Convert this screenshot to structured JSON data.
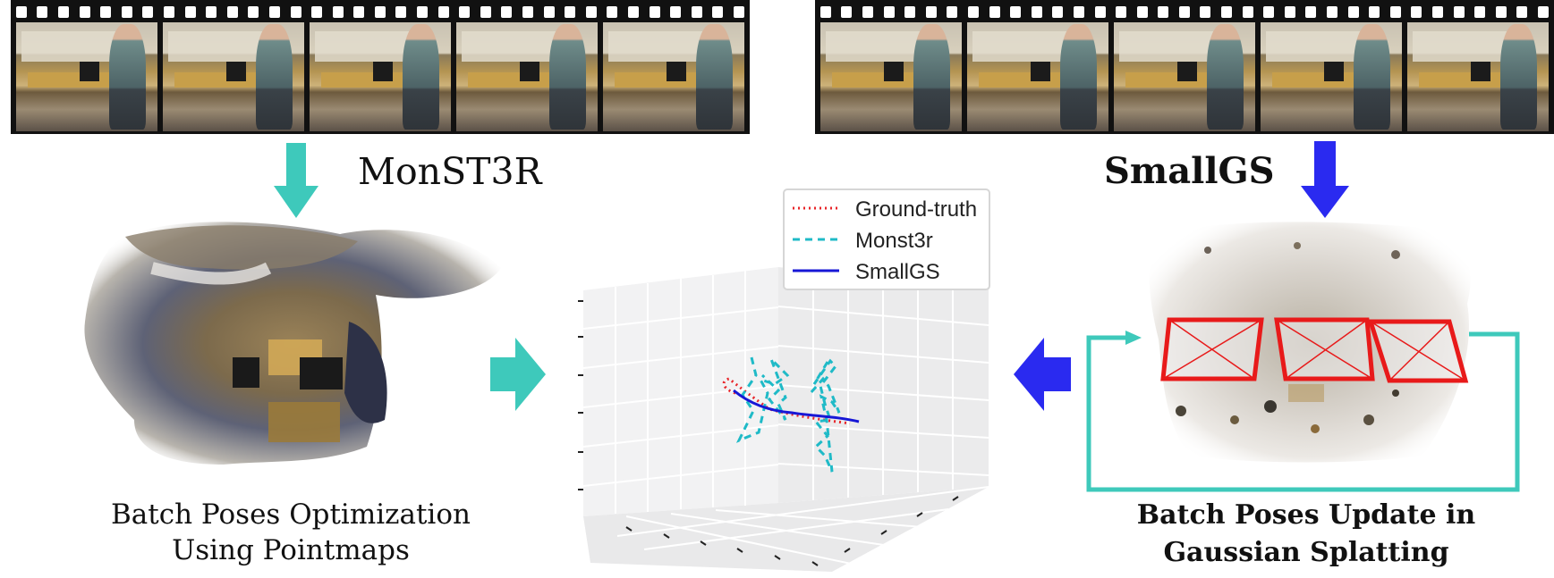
{
  "left_method_label": "MonST3R",
  "right_method_label": "SmallGS",
  "left_caption_line1": "Batch Poses Optimization",
  "left_caption_line2": "Using Pointmaps",
  "right_caption_line1": "Batch Poses Update in",
  "right_caption_line2": "Gaussian Splatting",
  "legend": {
    "ground_truth": "Ground-truth",
    "monst3r": "Monst3r",
    "smallgs": "SmallGS"
  },
  "colors": {
    "teal_arrow": "#3ec9bb",
    "blue_arrow": "#2a2af0",
    "ground_truth_line": "#e8262a",
    "monst3r_line": "#1fbac7",
    "smallgs_line": "#1717d6",
    "camera_frustum": "#e81a1a",
    "feedback_loop": "#3ec9bb"
  },
  "icons": {
    "left_filmstrip": "video-filmstrip-icon",
    "right_filmstrip": "video-filmstrip-icon"
  }
}
